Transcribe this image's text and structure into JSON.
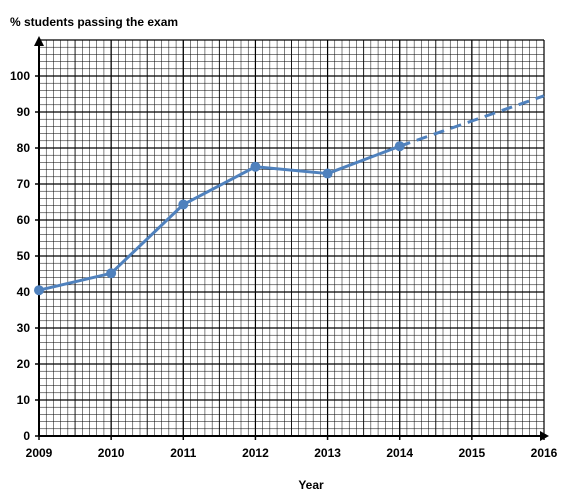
{
  "chart_data": {
    "type": "line",
    "ylabel": "% students passing the exam",
    "xlabel": "Year",
    "x_ticks": [
      "2009",
      "2010",
      "2011",
      "2012",
      "2013",
      "2014",
      "2015",
      "2016"
    ],
    "y_ticks": [
      "0",
      "10",
      "20",
      "30",
      "40",
      "50",
      "60",
      "70",
      "80",
      "90",
      "100"
    ],
    "xlim": [
      2009,
      2016
    ],
    "ylim": [
      0,
      110
    ],
    "grid": true,
    "series": [
      {
        "style": "solid",
        "markers": true,
        "color": "#4f81bd",
        "x": [
          2009,
          2010,
          2011,
          2012,
          2013,
          2014
        ],
        "y": [
          40.5,
          45.2,
          64.3,
          74.8,
          72.9,
          80.5
        ]
      },
      {
        "style": "dashed",
        "markers": false,
        "color": "#4f81bd",
        "x": [
          2014,
          2015,
          2016
        ],
        "y": [
          80.5,
          87.5,
          94.5
        ]
      }
    ]
  }
}
